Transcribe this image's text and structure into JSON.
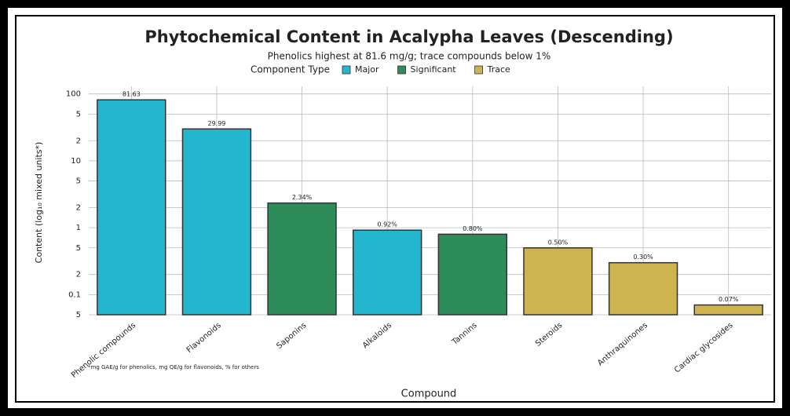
{
  "chart_data": {
    "type": "bar",
    "title": "Phytochemical Content in Acalypha Leaves (Descending)",
    "subtitle": "Phenolics highest at 81.6 mg/g; trace compounds below 1%",
    "legend_title": "Component Type",
    "x_label": "Compound",
    "y_label": "Content (log₁₀ mixed units*)",
    "footnote": "*mg GAE/g for phenolics, mg QE/g for flavonoids, % for others",
    "categories": [
      "Phenolic compounds",
      "Flavonoids",
      "Saponins",
      "Alkaloids",
      "Tannins",
      "Steroids",
      "Anthraquinones",
      "Cardiac glycosides"
    ],
    "series": [
      {
        "name": "Major",
        "color": "#22b6cf",
        "values": [
          81.63,
          29.99,
          null,
          0.92,
          null,
          null,
          null,
          null
        ],
        "value_labels": [
          "81.63",
          "29.99",
          null,
          "0.92%",
          null,
          null,
          null,
          null
        ]
      },
      {
        "name": "Significant",
        "color": "#2e8b5a",
        "values": [
          null,
          null,
          2.34,
          null,
          0.8,
          null,
          null,
          null
        ],
        "value_labels": [
          null,
          null,
          "2.34%",
          null,
          "0.80%",
          null,
          null,
          null
        ]
      },
      {
        "name": "Trace",
        "color": "#cdb44e",
        "values": [
          null,
          null,
          null,
          null,
          null,
          0.5,
          0.3,
          0.07
        ],
        "value_labels": [
          null,
          null,
          null,
          null,
          null,
          "0.50%",
          "0.30%",
          "0.07%"
        ]
      }
    ],
    "log_scale": true,
    "ylim": [
      0.05,
      130
    ],
    "yticks": [
      100,
      {
        "value": 50,
        "label": "5"
      },
      {
        "value": 20,
        "label": "2"
      },
      10,
      5,
      2,
      1,
      {
        "value": 0.5,
        "label": "5"
      },
      {
        "value": 0.2,
        "label": "2"
      },
      0.1,
      {
        "value": 0.05,
        "label": "5"
      }
    ],
    "grid": true
  }
}
